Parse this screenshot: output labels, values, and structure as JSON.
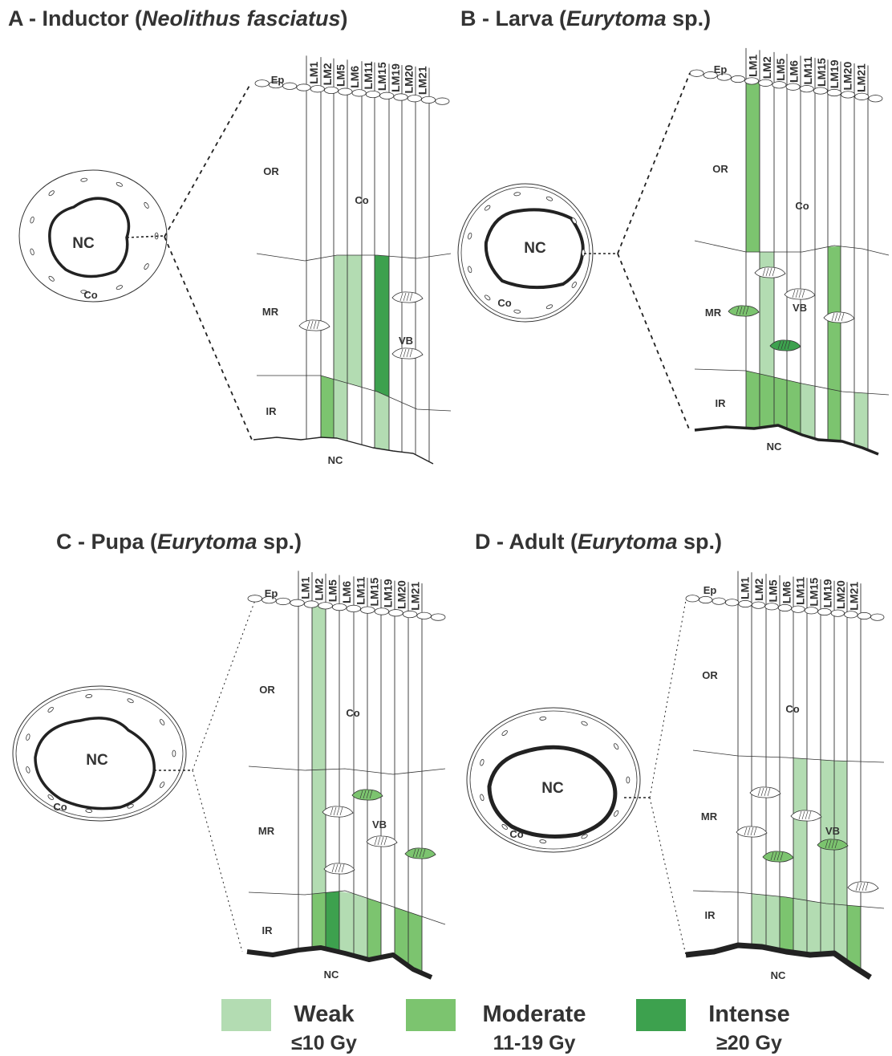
{
  "colors": {
    "weak": "#b3dcb2",
    "moderate": "#7cc46f",
    "intense": "#3da14e",
    "line": "#333333"
  },
  "markers": [
    "LM1",
    "LM2",
    "LM5",
    "LM6",
    "LM11",
    "LM15",
    "LM19",
    "LM20",
    "LM21"
  ],
  "labels": {
    "ep": "Ep",
    "or": "OR",
    "mr": "MR",
    "ir": "IR",
    "co": "Co",
    "nc": "NC",
    "vb": "VB"
  },
  "panels": [
    {
      "id": "A",
      "title_prefix": "A - Inductor (",
      "title_species": "Neolithus fasciatus",
      "title_suffix": ")",
      "cells": [
        {
          "marker": 3,
          "region": "mr",
          "level": "weak"
        },
        {
          "marker": 4,
          "region": "mr",
          "level": "weak"
        },
        {
          "marker": 6,
          "region": "mr",
          "level": "intense"
        },
        {
          "marker": 2,
          "region": "ir",
          "level": "moderate"
        },
        {
          "marker": 3,
          "region": "ir",
          "level": "weak"
        },
        {
          "marker": 6,
          "region": "ir",
          "level": "weak"
        }
      ]
    },
    {
      "id": "B",
      "title_prefix": "B - Larva (",
      "title_species": "Eurytoma",
      "title_suffix": " sp.)",
      "cells": [
        {
          "marker": 1,
          "region": "or",
          "level": "moderate"
        },
        {
          "marker": 2,
          "region": "mr",
          "level": "weak"
        },
        {
          "marker": 7,
          "region": "mr",
          "level": "moderate"
        },
        {
          "marker": 1,
          "region": "ir",
          "level": "moderate"
        },
        {
          "marker": 2,
          "region": "ir",
          "level": "moderate"
        },
        {
          "marker": 3,
          "region": "ir",
          "level": "moderate"
        },
        {
          "marker": 4,
          "region": "ir",
          "level": "moderate"
        },
        {
          "marker": 5,
          "region": "ir",
          "level": "weak"
        },
        {
          "marker": 7,
          "region": "ir",
          "level": "moderate"
        },
        {
          "marker": 9,
          "region": "ir",
          "level": "weak"
        }
      ]
    },
    {
      "id": "C",
      "title_prefix": "C - Pupa (",
      "title_species": "Eurytoma",
      "title_suffix": " sp.)",
      "cells": [
        {
          "marker": 2,
          "region": "or",
          "level": "weak"
        },
        {
          "marker": 2,
          "region": "mr",
          "level": "weak"
        },
        {
          "marker": 2,
          "region": "ir",
          "level": "moderate"
        },
        {
          "marker": 3,
          "region": "ir",
          "level": "intense"
        },
        {
          "marker": 4,
          "region": "ir",
          "level": "weak"
        },
        {
          "marker": 5,
          "region": "ir",
          "level": "weak"
        },
        {
          "marker": 6,
          "region": "ir",
          "level": "moderate"
        },
        {
          "marker": 8,
          "region": "ir",
          "level": "moderate"
        },
        {
          "marker": 9,
          "region": "ir",
          "level": "moderate"
        }
      ]
    },
    {
      "id": "D",
      "title_prefix": "D - Adult (",
      "title_species": "Eurytoma",
      "title_suffix": " sp.)",
      "cells": [
        {
          "marker": 5,
          "region": "mr",
          "level": "weak"
        },
        {
          "marker": 7,
          "region": "mr",
          "level": "weak"
        },
        {
          "marker": 8,
          "region": "mr",
          "level": "weak"
        },
        {
          "marker": 2,
          "region": "ir",
          "level": "weak"
        },
        {
          "marker": 3,
          "region": "ir",
          "level": "weak"
        },
        {
          "marker": 4,
          "region": "ir",
          "level": "moderate"
        },
        {
          "marker": 5,
          "region": "ir",
          "level": "weak"
        },
        {
          "marker": 6,
          "region": "ir",
          "level": "weak"
        },
        {
          "marker": 7,
          "region": "ir",
          "level": "weak"
        },
        {
          "marker": 8,
          "region": "ir",
          "level": "weak"
        },
        {
          "marker": 9,
          "region": "ir",
          "level": "moderate"
        }
      ]
    }
  ],
  "legend": [
    {
      "name": "Weak",
      "range": "≤10 Gy",
      "level": "weak"
    },
    {
      "name": "Moderate",
      "range": "11-19 Gy",
      "level": "moderate"
    },
    {
      "name": "Intense",
      "range": "≥20 Gy",
      "level": "intense"
    }
  ]
}
